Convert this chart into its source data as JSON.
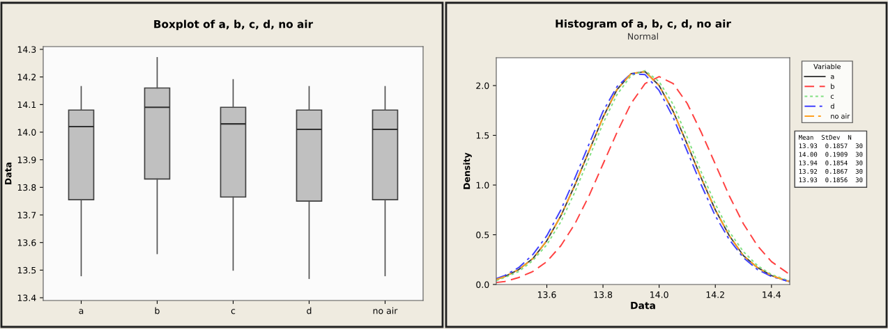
{
  "chart_data": [
    {
      "type": "box",
      "title": "Boxplot of a, b, c, d, no air",
      "ylabel": "Data",
      "categories": [
        "a",
        "b",
        "c",
        "d",
        "no air"
      ],
      "color": "#c0c0c0",
      "grid": false,
      "legend": false,
      "boxes": [
        {
          "low": 13.48,
          "q1": 13.755,
          "median": 14.02,
          "q3": 14.08,
          "high": 14.165
        },
        {
          "low": 13.56,
          "q1": 13.83,
          "median": 14.09,
          "q3": 14.16,
          "high": 14.27
        },
        {
          "low": 13.5,
          "q1": 13.765,
          "median": 14.03,
          "q3": 14.09,
          "high": 14.19
        },
        {
          "low": 13.47,
          "q1": 13.75,
          "median": 14.01,
          "q3": 14.08,
          "high": 14.165
        },
        {
          "low": 13.48,
          "q1": 13.755,
          "median": 14.01,
          "q3": 14.08,
          "high": 14.165
        }
      ],
      "ylim": [
        13.39,
        14.31
      ],
      "yticks": [
        13.4,
        13.5,
        13.6,
        13.7,
        13.8,
        13.9,
        {
          "value": 14,
          "label": "14.0"
        },
        14.1,
        14.2,
        14.3
      ]
    },
    {
      "type": "line",
      "title": "Histogram of a, b, c, d, no air",
      "subtitle": "Normal",
      "xlabel": "Data",
      "ylabel": "Density",
      "legend_title": "Variable",
      "legend": "right",
      "grid": false,
      "marker": "none",
      "x": [
        13.42,
        13.45,
        13.5,
        13.55,
        13.6,
        13.65,
        13.7,
        13.75,
        13.8,
        13.85,
        13.9,
        13.95,
        14.0,
        14.05,
        14.1,
        14.15,
        14.2,
        14.25,
        14.3,
        14.35,
        14.4,
        14.45,
        14.465
      ],
      "series": [
        {
          "name": "a",
          "color": "#404040",
          "line_style": "solid",
          "values": [
            0.05,
            0.08,
            0.15,
            0.26,
            0.44,
            0.69,
            1.0,
            1.34,
            1.68,
            1.96,
            2.12,
            2.14,
            2.0,
            1.74,
            1.41,
            1.07,
            0.75,
            0.49,
            0.29,
            0.17,
            0.09,
            0.04,
            0.03
          ]
        },
        {
          "name": "b",
          "color": "#ff4040",
          "line_style": "dashed",
          "values": [
            0.02,
            0.03,
            0.07,
            0.13,
            0.23,
            0.39,
            0.61,
            0.89,
            1.21,
            1.53,
            1.82,
            2.02,
            2.09,
            2.02,
            1.82,
            1.53,
            1.21,
            0.89,
            0.61,
            0.39,
            0.23,
            0.13,
            0.1
          ]
        },
        {
          "name": "c",
          "color": "#80e080",
          "line_style": "dotted",
          "values": [
            0.04,
            0.07,
            0.13,
            0.24,
            0.4,
            0.63,
            0.93,
            1.27,
            1.62,
            1.91,
            2.1,
            2.15,
            2.04,
            1.81,
            1.48,
            1.13,
            0.81,
            0.53,
            0.33,
            0.19,
            0.1,
            0.05,
            0.04
          ]
        },
        {
          "name": "d",
          "color": "#4040ff",
          "line_style": "dashdot",
          "values": [
            0.06,
            0.09,
            0.17,
            0.3,
            0.49,
            0.75,
            1.07,
            1.41,
            1.74,
            1.99,
            2.12,
            2.11,
            1.95,
            1.68,
            1.34,
            1.0,
            0.69,
            0.45,
            0.27,
            0.15,
            0.08,
            0.04,
            0.03
          ]
        },
        {
          "name": "no air",
          "color": "#ffa020",
          "line_style": "dashdotdot",
          "values": [
            0.05,
            0.08,
            0.15,
            0.26,
            0.44,
            0.69,
            1.0,
            1.34,
            1.68,
            1.96,
            2.12,
            2.14,
            2.0,
            1.74,
            1.41,
            1.07,
            0.75,
            0.49,
            0.29,
            0.17,
            0.09,
            0.04,
            0.03
          ]
        }
      ],
      "annotations": [
        "Mean  StDev  N",
        "13.93  0.1857  30",
        "14.00  0.1909  30",
        "13.94  0.1854  30",
        "13.92  0.1867  30",
        "13.93  0.1856  30"
      ],
      "xlim": [
        13.42,
        14.465
      ],
      "xticks": [
        13.6,
        13.8,
        {
          "value": 14,
          "label": "14.0"
        },
        14.2,
        14.4
      ],
      "ylim": [
        0,
        2.28
      ],
      "yticks": [
        {
          "value": 0,
          "label": "0.0"
        },
        0.5,
        {
          "value": 1,
          "label": "1.0"
        },
        1.5,
        {
          "value": 2,
          "label": "2.0"
        }
      ]
    }
  ]
}
